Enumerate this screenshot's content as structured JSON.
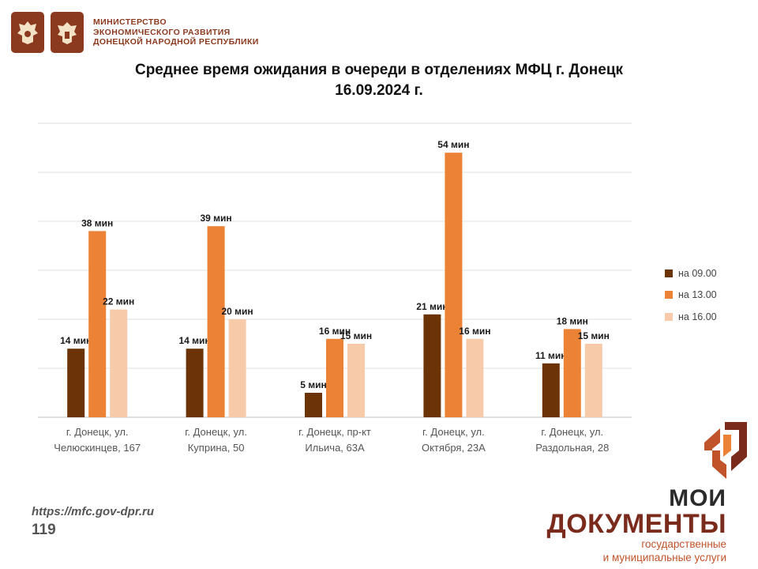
{
  "header": {
    "ministry_lines": [
      "МИНИСТЕРСТВО",
      "ЭКОНОМИЧЕСКОГО РАЗВИТИЯ",
      "ДОНЕЦКОЙ НАРОДНОЙ РЕСПУБЛИКИ"
    ],
    "emblems": [
      "double-headed-eagle-icon",
      "dpr-coat-of-arms-icon"
    ]
  },
  "chart_data": {
    "type": "bar",
    "title": "Среднее время ожидания в очереди в отделениях МФЦ г. Донецк 16.09.2024 г.",
    "title_lines": [
      "Среднее время ожидания в очереди в отделениях МФЦ г. Донецк",
      "16.09.2024 г."
    ],
    "categories": [
      [
        "г. Донецк, ул.",
        "Челюскинцев, 167"
      ],
      [
        "г. Донецк, ул.",
        "Куприна, 50"
      ],
      [
        "г. Донецк, пр-кт",
        "Ильича, 63А"
      ],
      [
        "г. Донецк, ул.",
        "Октября, 23А"
      ],
      [
        "г. Донецк, ул.",
        "Раздольная, 28"
      ]
    ],
    "series": [
      {
        "name": "на 09.00",
        "color": "#6b3306",
        "values": [
          14,
          14,
          5,
          21,
          11
        ]
      },
      {
        "name": "на 13.00",
        "color": "#ec8236",
        "values": [
          38,
          39,
          16,
          54,
          18
        ]
      },
      {
        "name": "на 16.00",
        "color": "#f7cba9",
        "values": [
          22,
          20,
          15,
          16,
          15
        ]
      }
    ],
    "value_suffix": " мин",
    "ylim": [
      0,
      60
    ],
    "grid": true,
    "legend_position": "right"
  },
  "footer": {
    "url": "https://mfc.gov-dpr.ru",
    "page": "119"
  },
  "brand": {
    "line1": "МОИ",
    "line2": "ДОКУМЕНТЫ",
    "line3": "государственные",
    "line4": "и муниципальные услуги"
  }
}
